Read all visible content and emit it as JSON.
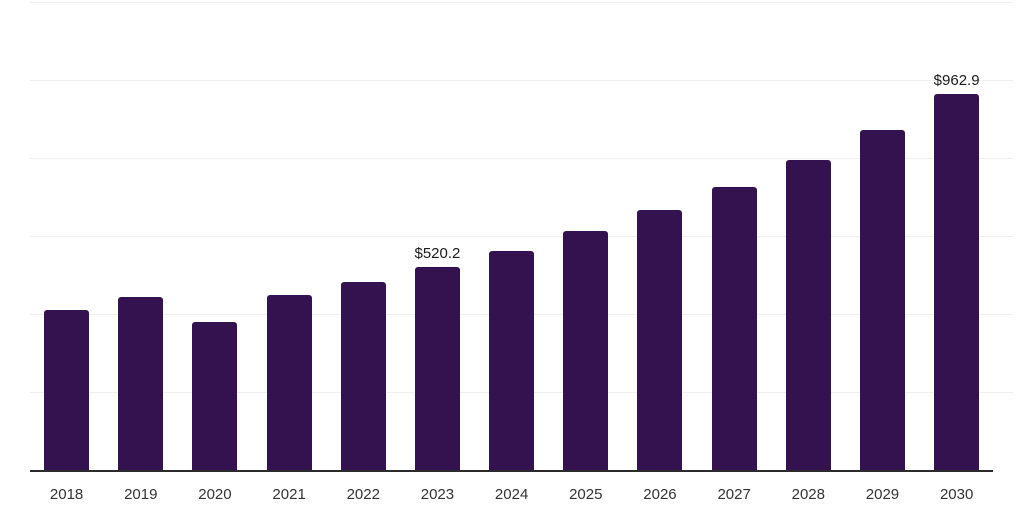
{
  "chart_data": {
    "type": "bar",
    "title": "",
    "xlabel": "",
    "ylabel": "",
    "categories": [
      "2018",
      "2019",
      "2020",
      "2021",
      "2022",
      "2023",
      "2024",
      "2025",
      "2026",
      "2027",
      "2028",
      "2029",
      "2030"
    ],
    "values": [
      410,
      444,
      379,
      450,
      481,
      520.2,
      562,
      612,
      667,
      726,
      795,
      873,
      962.9
    ],
    "data_labels": {
      "2023": "$520.2",
      "2030": "$962.9"
    },
    "ylim": [
      0,
      1200
    ],
    "gridline_step": 200,
    "grid": true,
    "legend": "none",
    "y_axis_labels_visible": false,
    "colors": {
      "bar": "#341250",
      "gridline": "#efefef",
      "axis": "#2b2b2b",
      "tick_label": "#333333",
      "data_label": "#1a1a1a",
      "background": "#ffffff"
    }
  }
}
